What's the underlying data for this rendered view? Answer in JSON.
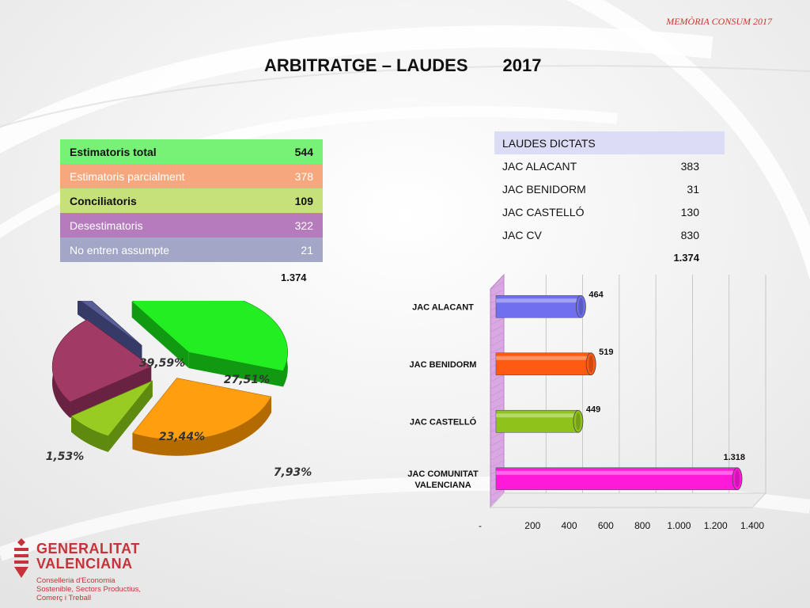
{
  "header_tag": "MEMÒRIA CONSUM 2017",
  "title": "ARBITRATGE – LAUDES",
  "year": "2017",
  "estimatoris_table": {
    "rows": [
      {
        "label": "Estimatoris total",
        "value": "544",
        "bg": "#77f277",
        "fg": "#111111"
      },
      {
        "label": "Estimatoris parcialment",
        "value": "378",
        "bg": "#f6a77e",
        "fg": "#ffffff"
      },
      {
        "label": "Conciliatoris",
        "value": "109",
        "bg": "#c6e07a",
        "fg": "#111111"
      },
      {
        "label": "Desestimatoris",
        "value": "322",
        "bg": "#b57bbd",
        "fg": "#ffffff"
      },
      {
        "label": "No entren assumpte",
        "value": "21",
        "bg": "#a3a6c6",
        "fg": "#ffffff"
      }
    ],
    "total": "1.374"
  },
  "laudes_table": {
    "header": "LAUDES DICTATS",
    "rows": [
      {
        "label": "JAC ALACANT",
        "value": "383"
      },
      {
        "label": "JAC BENIDORM",
        "value": "31"
      },
      {
        "label": "JAC CASTELLÓ",
        "value": "130"
      },
      {
        "label": "JAC CV",
        "value": "830"
      }
    ],
    "total": "1.374"
  },
  "chart_data": [
    {
      "type": "pie",
      "slices": [
        {
          "label": "39,59%",
          "value": 39.59,
          "color": "#22ee22",
          "side": "#119911"
        },
        {
          "label": "27,51%",
          "value": 27.51,
          "color": "#ff9e0f",
          "side": "#b36a00"
        },
        {
          "label": "7,93%",
          "value": 7.93,
          "color": "#99cc22",
          "side": "#5f8a10"
        },
        {
          "label": "23,44%",
          "value": 23.44,
          "color": "#a23a66",
          "side": "#6a2242"
        },
        {
          "label": "1,53%",
          "value": 1.53,
          "color": "#5a5f96",
          "side": "#363a66"
        }
      ]
    },
    {
      "type": "bar",
      "orientation": "horizontal",
      "categories": [
        "JAC ALACANT",
        "JAC BENIDORM",
        "JAC CASTELLÓ",
        "JAC COMUNITAT VALENCIANA"
      ],
      "values": [
        464,
        519,
        449,
        1318
      ],
      "value_labels": [
        "464",
        "519",
        "449",
        "1.318"
      ],
      "colors": [
        "#6f6ff0",
        "#ff5a14",
        "#8fc21a",
        "#ff1ad9"
      ],
      "xlim": [
        0,
        1400
      ],
      "xticks": [
        0,
        200,
        400,
        600,
        800,
        1000,
        1200,
        1400
      ],
      "xtick_labels": [
        "-",
        "200",
        "400",
        "600",
        "800",
        "1.000",
        "1.200",
        "1.400"
      ],
      "grid": true
    }
  ],
  "logo": {
    "line1": "GENERALITAT",
    "line2": "VALENCIANA",
    "sub1": "Conselleria d'Economia",
    "sub2": "Sostenible, Sectors Productius,",
    "sub3": "Comerç i Treball"
  }
}
